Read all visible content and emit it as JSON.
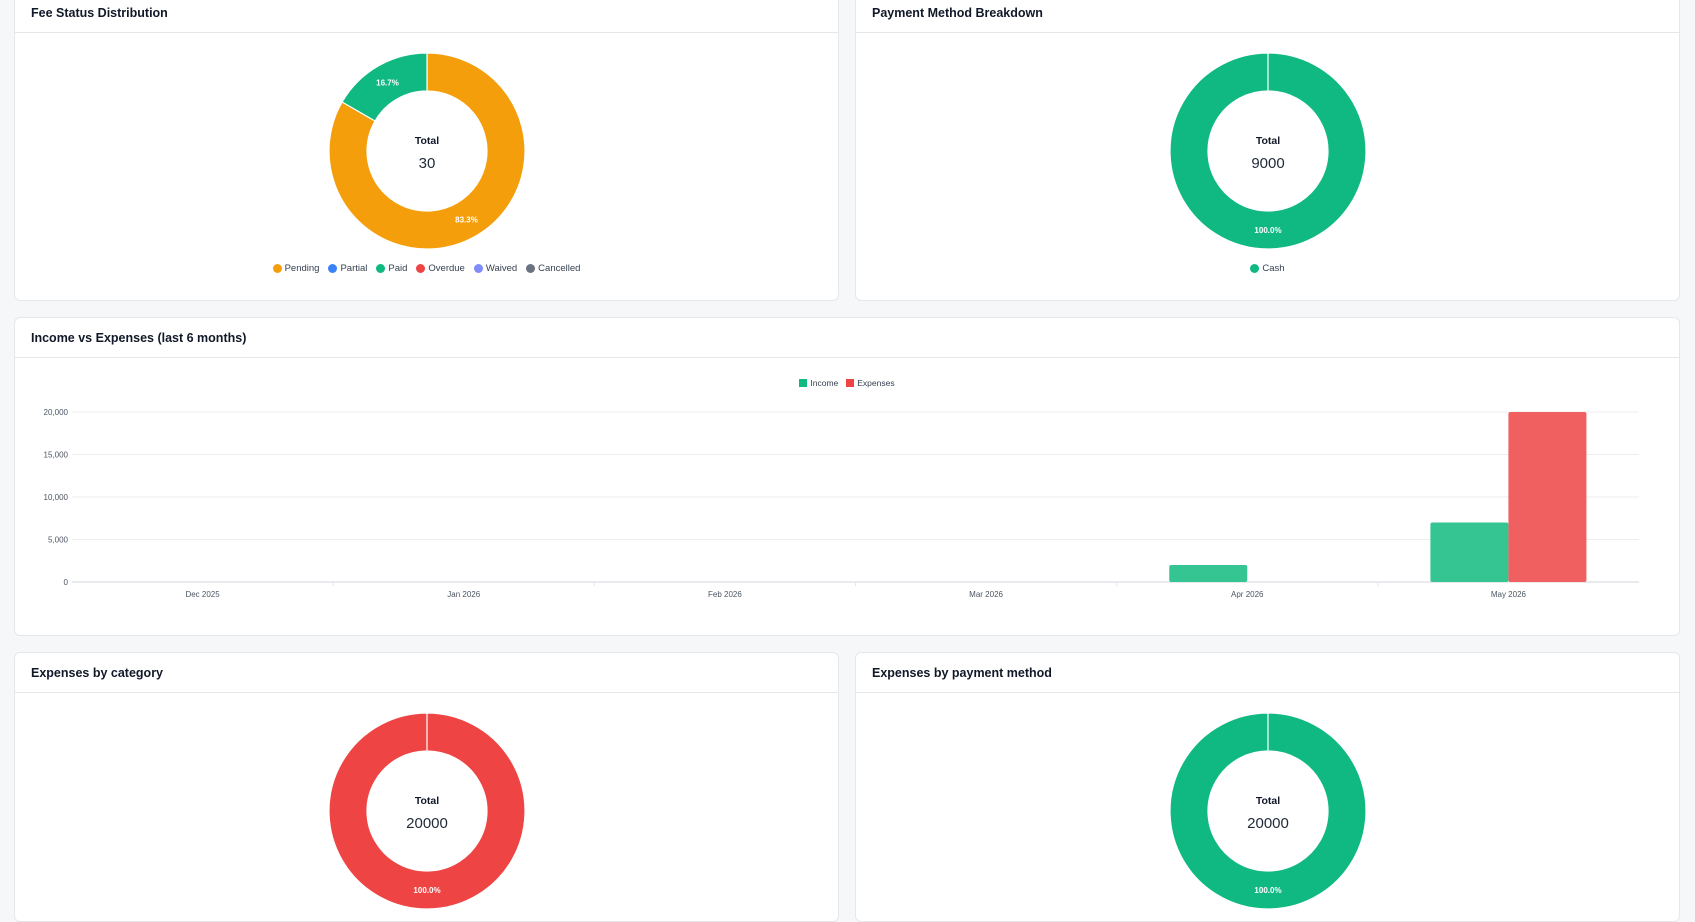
{
  "fee_status": {
    "title": "Fee Status Distribution",
    "center_label": "Total",
    "center_value": "30",
    "legend": [
      {
        "label": "Pending",
        "color": "#f59e0b"
      },
      {
        "label": "Partial",
        "color": "#3b82f6"
      },
      {
        "label": "Paid",
        "color": "#10b981"
      },
      {
        "label": "Overdue",
        "color": "#ef4444"
      },
      {
        "label": "Waived",
        "color": "#818cf8"
      },
      {
        "label": "Cancelled",
        "color": "#6b7280"
      }
    ]
  },
  "payment_method": {
    "title": "Payment Method Breakdown",
    "center_label": "Total",
    "center_value": "9000",
    "legend": [
      {
        "label": "Cash",
        "color": "#10b981"
      }
    ]
  },
  "income_expenses": {
    "title": "Income vs Expenses (last 6 months)",
    "legend": [
      {
        "label": "Income",
        "color": "#10b981"
      },
      {
        "label": "Expenses",
        "color": "#ef4444"
      }
    ]
  },
  "expenses_category": {
    "title": "Expenses by category",
    "center_label": "Total",
    "center_value": "20000"
  },
  "expenses_payment": {
    "title": "Expenses by payment method",
    "center_label": "Total",
    "center_value": "20000"
  },
  "chart_data": [
    {
      "type": "pie",
      "title": "Fee Status Distribution",
      "labels": [
        "Pending",
        "Partial",
        "Paid",
        "Overdue",
        "Waived",
        "Cancelled"
      ],
      "values": [
        25,
        0,
        5,
        0,
        0,
        0
      ],
      "colors": [
        "#f59e0b",
        "#3b82f6",
        "#10b981",
        "#ef4444",
        "#818cf8",
        "#6b7280"
      ],
      "data_labels": [
        "83.3%",
        "",
        "16.7%",
        "",
        "",
        ""
      ],
      "total": 30
    },
    {
      "type": "pie",
      "title": "Payment Method Breakdown",
      "labels": [
        "Cash"
      ],
      "values": [
        9000
      ],
      "colors": [
        "#10b981"
      ],
      "data_labels": [
        "100.0%"
      ],
      "total": 9000
    },
    {
      "type": "bar",
      "title": "Income vs Expenses (last 6 months)",
      "categories": [
        "Dec 2025",
        "Jan 2026",
        "Feb 2026",
        "Mar 2026",
        "Apr 2026",
        "May 2026"
      ],
      "series": [
        {
          "name": "Income",
          "values": [
            0,
            0,
            0,
            0,
            2000,
            7000
          ],
          "color": "#10b981"
        },
        {
          "name": "Expenses",
          "values": [
            0,
            0,
            0,
            0,
            0,
            20000
          ],
          "color": "#ef4444"
        }
      ],
      "ylim": [
        0,
        20000
      ],
      "yticks": [
        "0",
        "5,000",
        "10,000",
        "15,000",
        "20,000"
      ],
      "ytick_values": [
        0,
        5000,
        10000,
        15000,
        20000
      ],
      "grid": true,
      "legend_position": "top-center"
    },
    {
      "type": "pie",
      "title": "Expenses by category",
      "values": [
        20000
      ],
      "colors": [
        "#ef4444"
      ],
      "data_labels": [
        "100.0%"
      ],
      "total": 20000
    },
    {
      "type": "pie",
      "title": "Expenses by payment method",
      "values": [
        20000
      ],
      "colors": [
        "#10b981"
      ],
      "data_labels": [
        "100.0%"
      ],
      "total": 20000
    }
  ]
}
